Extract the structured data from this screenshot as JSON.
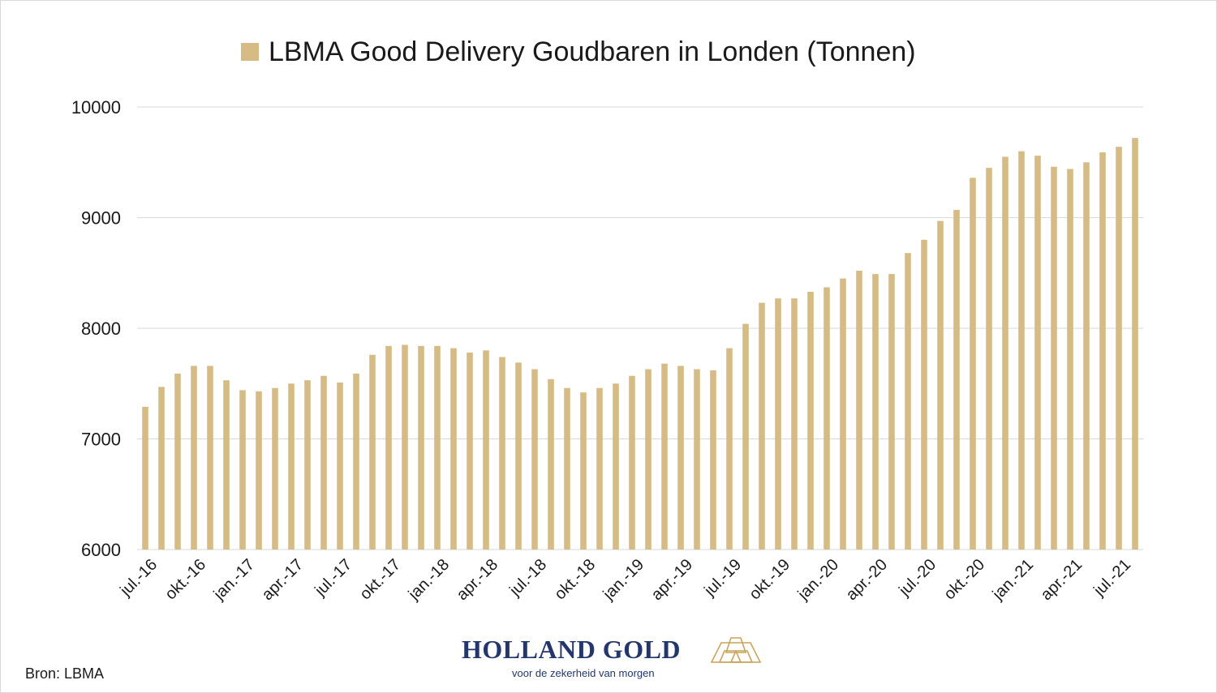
{
  "colors": {
    "bar": "#d6bb85",
    "grid": "#d9d9d9",
    "text": "#1a1a1a",
    "brand": "#23376b",
    "logo": "#c9a45c"
  },
  "source": "Bron: LBMA",
  "brand": {
    "name": "HOLLAND GOLD",
    "tagline": "voor de zekerheid van morgen",
    "logo_icon": "gold-bars-logo-icon"
  },
  "chart_data": {
    "type": "bar",
    "title": "LBMA Good Delivery Goudbaren in Londen (Tonnen)",
    "legend": [
      {
        "label": "LBMA Good Delivery Goudbaren in Londen (Tonnen)",
        "color": "#d6bb85",
        "position": "top-center"
      }
    ],
    "xlabel": "",
    "ylabel": "",
    "ylim": [
      6000,
      10000
    ],
    "yticks": [
      6000,
      7000,
      8000,
      9000,
      10000
    ],
    "grid": true,
    "categories": [
      "jul.-16",
      "aug.-16",
      "sep.-16",
      "okt.-16",
      "nov.-16",
      "dec.-16",
      "jan.-17",
      "feb.-17",
      "mrt.-17",
      "apr.-17",
      "mei-17",
      "jun.-17",
      "jul.-17",
      "aug.-17",
      "sep.-17",
      "okt.-17",
      "nov.-17",
      "dec.-17",
      "jan.-18",
      "feb.-18",
      "mrt.-18",
      "apr.-18",
      "mei-18",
      "jun.-18",
      "jul.-18",
      "aug.-18",
      "sep.-18",
      "okt.-18",
      "nov.-18",
      "dec.-18",
      "jan.-19",
      "feb.-19",
      "mrt.-19",
      "apr.-19",
      "mei-19",
      "jun.-19",
      "jul.-19",
      "aug.-19",
      "sep.-19",
      "okt.-19",
      "nov.-19",
      "dec.-19",
      "jan.-20",
      "feb.-20",
      "mrt.-20",
      "apr.-20",
      "mei-20",
      "jun.-20",
      "jul.-20",
      "aug.-20",
      "sep.-20",
      "okt.-20",
      "nov.-20",
      "dec.-20",
      "jan.-21",
      "feb.-21",
      "mrt.-21",
      "apr.-21",
      "mei-21",
      "jun.-21",
      "jul.-21",
      "aug.-21"
    ],
    "x_tick_labels": [
      "jul.-16",
      "okt.-16",
      "jan.-17",
      "apr.-17",
      "jul.-17",
      "okt.-17",
      "jan.-18",
      "apr.-18",
      "jul.-18",
      "okt.-18",
      "jan.-19",
      "apr.-19",
      "jul.-19",
      "okt.-19",
      "jan.-20",
      "apr.-20",
      "jul.-20",
      "okt.-20",
      "jan.-21",
      "apr.-21",
      "jul.-21"
    ],
    "values": [
      7290,
      7470,
      7590,
      7660,
      7660,
      7530,
      7440,
      7430,
      7460,
      7500,
      7530,
      7570,
      7510,
      7590,
      7760,
      7840,
      7850,
      7840,
      7840,
      7820,
      7780,
      7800,
      7740,
      7690,
      7630,
      7540,
      7460,
      7420,
      7460,
      7500,
      7570,
      7630,
      7680,
      7660,
      7630,
      7620,
      7820,
      8040,
      8230,
      8270,
      8270,
      8330,
      8370,
      8450,
      8520,
      8490,
      8490,
      8680,
      8800,
      8970,
      9070,
      9360,
      9450,
      9550,
      9600,
      9560,
      9460,
      9440,
      9500,
      9590,
      9640,
      9720
    ]
  }
}
